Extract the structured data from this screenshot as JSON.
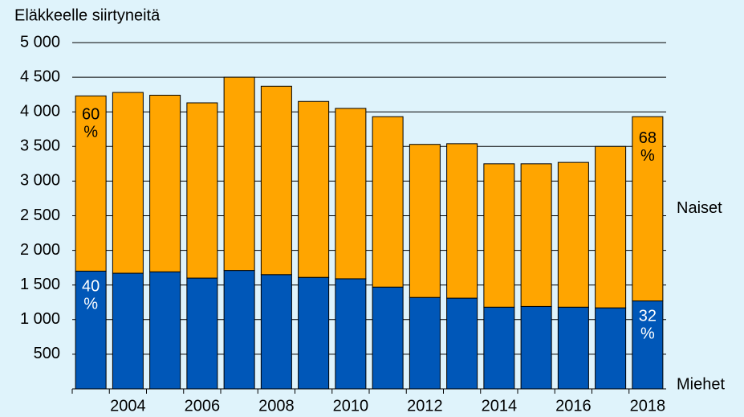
{
  "chart_data": {
    "type": "stacked_bar",
    "title": "Eläkkeelle siirtyneitä",
    "categories": [
      null,
      "2004",
      null,
      "2006",
      null,
      "2008",
      null,
      "2010",
      null,
      "2012",
      null,
      "2014",
      null,
      "2016",
      null,
      "2018"
    ],
    "series": [
      {
        "name": "Miehet",
        "color": "#0057b8",
        "values": [
          1700,
          1670,
          1690,
          1600,
          1710,
          1650,
          1610,
          1590,
          1470,
          1320,
          1310,
          1180,
          1190,
          1180,
          1170,
          1270
        ]
      },
      {
        "name": "Naiset",
        "color": "#ffa500",
        "values": [
          2530,
          2610,
          2550,
          2530,
          2790,
          2720,
          2540,
          2460,
          2460,
          2210,
          2230,
          2070,
          2060,
          2090,
          2330,
          2660
        ]
      }
    ],
    "annotations": [
      "60 %",
      "40 %",
      "68 %",
      "32 %"
    ],
    "ylim": [
      0,
      5000
    ],
    "yticks": [
      500,
      {
        "value": 1000,
        "label": "1 000"
      },
      {
        "value": 1500,
        "label": "1 500"
      },
      {
        "value": 2000,
        "label": "2 000"
      },
      {
        "value": 2500,
        "label": "2 500"
      },
      {
        "value": 3000,
        "label": "3 000"
      },
      {
        "value": 3500,
        "label": "3 500"
      },
      {
        "value": 4000,
        "label": "4 000"
      },
      {
        "value": 4500,
        "label": "4 500"
      },
      {
        "value": 5000,
        "label": "5 000"
      }
    ],
    "grid": true
  }
}
